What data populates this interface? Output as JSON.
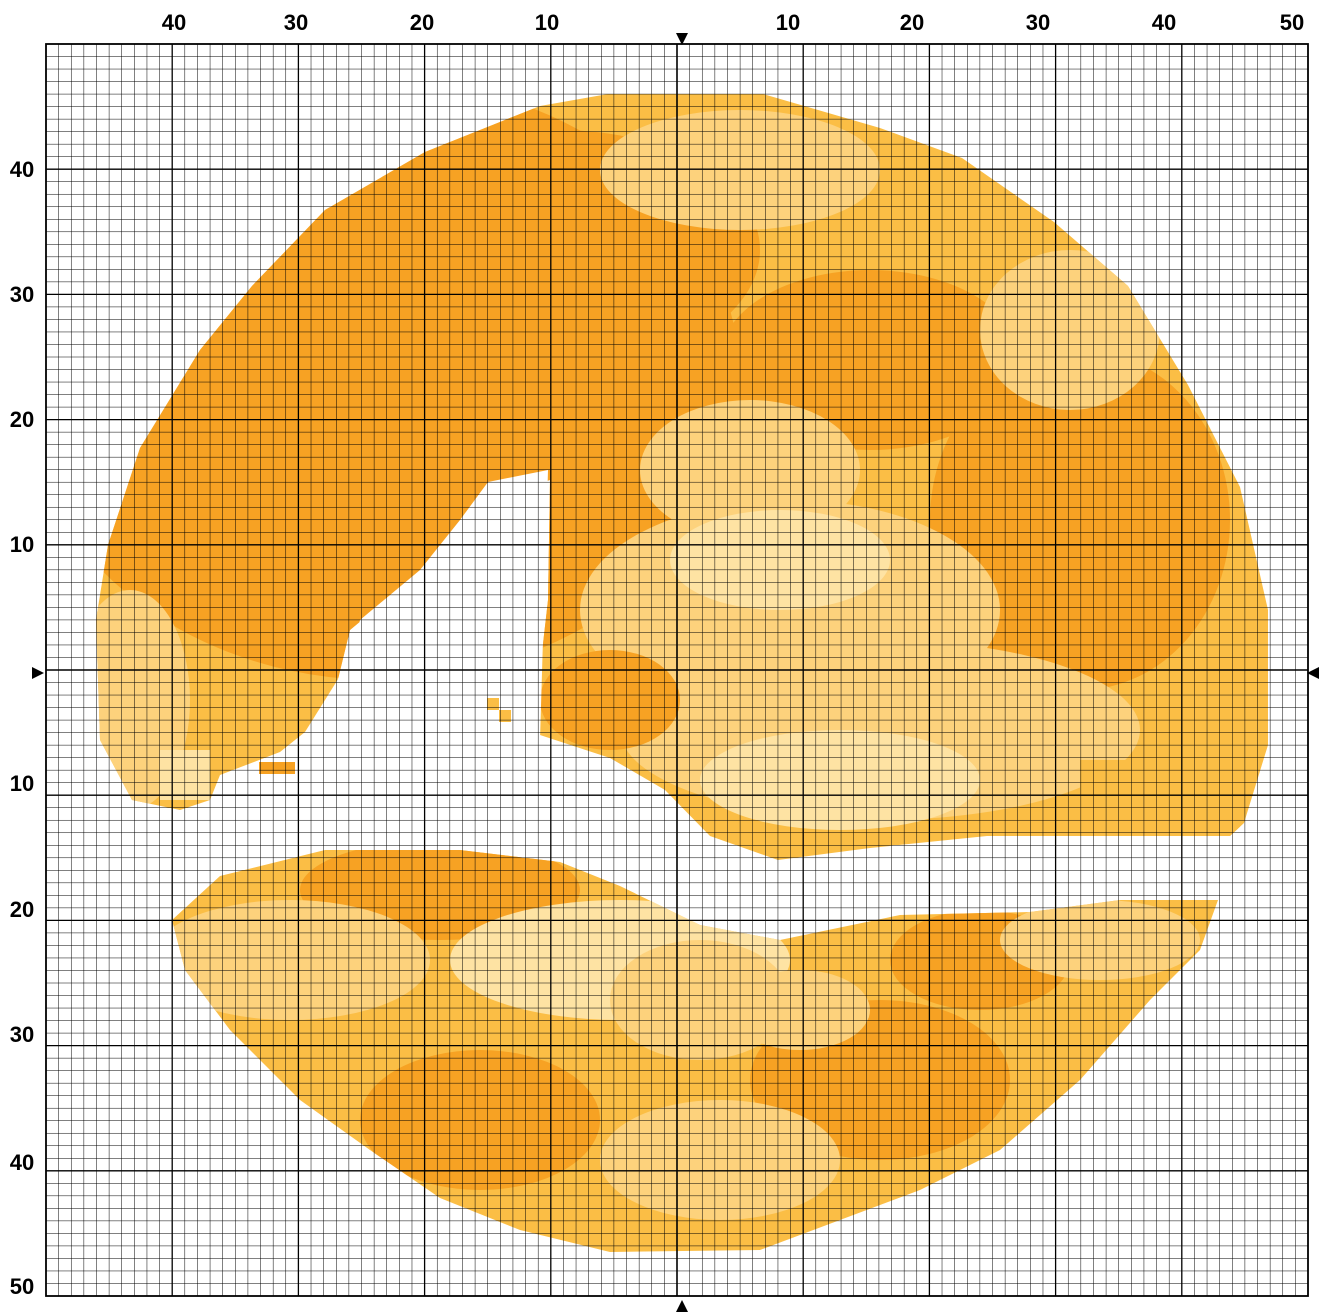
{
  "chart": {
    "type": "cross-stitch pattern grid",
    "grid_cells": {
      "cols": 100,
      "rows": 100
    },
    "bold_line_every": 10,
    "center": {
      "col": 50,
      "row": 50
    },
    "top_axis_labels": [
      "40",
      "30",
      "20",
      "10",
      "10",
      "20",
      "30",
      "40",
      "50"
    ],
    "left_axis_labels": [
      "40",
      "30",
      "20",
      "10",
      "10",
      "20",
      "30",
      "40",
      "50"
    ],
    "center_markers": [
      "top-arrow",
      "bottom-arrow",
      "left-arrow",
      "right-arrow"
    ]
  },
  "palette": {
    "dark": "#F7A223",
    "medium": "#FBBE45",
    "light": "#FDD27C",
    "pale": "#FEE3A3"
  },
  "regions": {
    "upper_disc": {
      "shape": "circle-with-lower-cut",
      "dominant_color": "dark",
      "notch_color": "#FFFFFF"
    },
    "lower_crescent": {
      "shape": "crescent",
      "dominant_color": "medium"
    }
  }
}
